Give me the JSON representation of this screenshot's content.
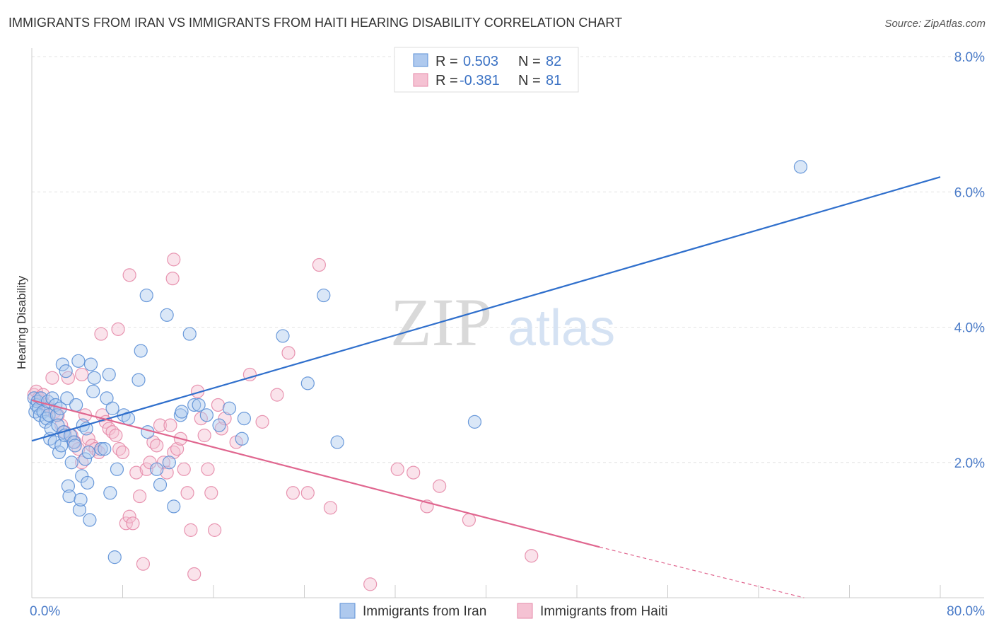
{
  "chart_data": {
    "type": "scatter",
    "title": "IMMIGRANTS FROM IRAN VS IMMIGRANTS FROM HAITI HEARING DISABILITY CORRELATION CHART",
    "source": "Source: ZipAtlas.com",
    "ylabel": "Hearing Disability",
    "xlim": [
      0,
      80
    ],
    "ylim": [
      0,
      8.0
    ],
    "x_tick_labels": {
      "min": "0.0%",
      "max": "80.0%"
    },
    "y_ticks": [
      {
        "value": 2,
        "label": "2.0%"
      },
      {
        "value": 4,
        "label": "4.0%"
      },
      {
        "value": 6,
        "label": "6.0%"
      },
      {
        "value": 8,
        "label": "8.0%"
      }
    ],
    "grid": true,
    "legend_position": "top-center",
    "legend": [
      {
        "r_label": "R =",
        "r_value": "0.503",
        "n_label": "N =",
        "n_value": "82"
      },
      {
        "r_label": "R =",
        "r_value": "-0.381",
        "n_label": "N =",
        "n_value": "81"
      }
    ],
    "series": [
      {
        "name": "Immigrants from Iran",
        "color": "#5b8fd6",
        "fill": "#aec9ee",
        "trend_color": "#2f6fcc",
        "trend": {
          "x0": 0,
          "y0": 2.32,
          "x1": 80,
          "y1": 6.22
        },
        "points": [
          [
            0.2,
            2.95
          ],
          [
            0.3,
            2.75
          ],
          [
            0.4,
            2.85
          ],
          [
            0.5,
            2.9
          ],
          [
            0.6,
            2.8
          ],
          [
            0.7,
            2.7
          ],
          [
            0.8,
            2.95
          ],
          [
            1.0,
            2.75
          ],
          [
            1.2,
            2.6
          ],
          [
            1.3,
            2.65
          ],
          [
            1.4,
            2.9
          ],
          [
            1.5,
            2.7
          ],
          [
            1.6,
            2.35
          ],
          [
            1.7,
            2.5
          ],
          [
            1.8,
            2.95
          ],
          [
            2.0,
            2.3
          ],
          [
            2.1,
            2.85
          ],
          [
            2.2,
            2.7
          ],
          [
            2.3,
            2.55
          ],
          [
            2.4,
            2.15
          ],
          [
            2.5,
            2.8
          ],
          [
            2.6,
            2.25
          ],
          [
            2.7,
            3.45
          ],
          [
            2.8,
            2.45
          ],
          [
            2.9,
            2.4
          ],
          [
            3.0,
            3.35
          ],
          [
            3.1,
            2.95
          ],
          [
            3.2,
            1.65
          ],
          [
            3.3,
            1.5
          ],
          [
            3.4,
            2.4
          ],
          [
            3.5,
            2.0
          ],
          [
            3.7,
            2.3
          ],
          [
            3.8,
            2.25
          ],
          [
            3.9,
            2.85
          ],
          [
            4.1,
            3.5
          ],
          [
            4.2,
            1.3
          ],
          [
            4.3,
            1.45
          ],
          [
            4.4,
            1.8
          ],
          [
            4.5,
            2.55
          ],
          [
            4.7,
            2.05
          ],
          [
            4.8,
            2.5
          ],
          [
            4.9,
            1.7
          ],
          [
            5.0,
            2.15
          ],
          [
            5.1,
            1.15
          ],
          [
            5.2,
            3.45
          ],
          [
            5.4,
            3.05
          ],
          [
            5.5,
            3.25
          ],
          [
            6.1,
            2.2
          ],
          [
            6.4,
            2.2
          ],
          [
            6.6,
            2.95
          ],
          [
            6.8,
            3.3
          ],
          [
            6.9,
            1.55
          ],
          [
            7.1,
            2.8
          ],
          [
            7.3,
            0.6
          ],
          [
            7.5,
            1.9
          ],
          [
            8.1,
            2.7
          ],
          [
            8.5,
            2.65
          ],
          [
            9.4,
            3.22
          ],
          [
            9.6,
            3.65
          ],
          [
            10.1,
            4.47
          ],
          [
            10.2,
            2.45
          ],
          [
            11.0,
            1.9
          ],
          [
            11.3,
            1.67
          ],
          [
            11.9,
            4.18
          ],
          [
            12.1,
            2.0
          ],
          [
            12.5,
            1.35
          ],
          [
            13.1,
            2.7
          ],
          [
            13.2,
            2.75
          ],
          [
            13.9,
            3.9
          ],
          [
            14.3,
            2.85
          ],
          [
            14.7,
            2.85
          ],
          [
            15.4,
            2.7
          ],
          [
            16.5,
            2.55
          ],
          [
            17.4,
            2.8
          ],
          [
            18.5,
            2.35
          ],
          [
            18.7,
            2.65
          ],
          [
            22.1,
            3.87
          ],
          [
            24.3,
            3.17
          ],
          [
            25.7,
            4.47
          ],
          [
            26.9,
            2.3
          ],
          [
            39.0,
            2.6
          ],
          [
            67.7,
            6.37
          ]
        ]
      },
      {
        "name": "Immigrants from Haiti",
        "color": "#e68aa8",
        "fill": "#f5c2d3",
        "trend_color": "#e0668f",
        "trend": {
          "x0": 0,
          "y0": 2.92,
          "x1": 50,
          "y1": 0.75
        },
        "trend_dash": {
          "x0": 50,
          "y0": 0.75,
          "x1": 68,
          "y1": 0.0
        },
        "points": [
          [
            0.2,
            3.0
          ],
          [
            0.4,
            3.05
          ],
          [
            0.6,
            2.95
          ],
          [
            0.8,
            2.9
          ],
          [
            1.0,
            3.0
          ],
          [
            1.2,
            2.85
          ],
          [
            1.5,
            2.8
          ],
          [
            1.8,
            3.25
          ],
          [
            2.0,
            2.75
          ],
          [
            2.3,
            2.7
          ],
          [
            2.6,
            2.55
          ],
          [
            2.9,
            2.45
          ],
          [
            3.2,
            3.25
          ],
          [
            3.5,
            2.4
          ],
          [
            3.8,
            2.3
          ],
          [
            4.1,
            2.2
          ],
          [
            4.4,
            2.0
          ],
          [
            4.7,
            2.7
          ],
          [
            5.0,
            2.35
          ],
          [
            5.3,
            2.25
          ],
          [
            5.6,
            2.2
          ],
          [
            5.9,
            2.15
          ],
          [
            6.2,
            2.7
          ],
          [
            6.5,
            2.6
          ],
          [
            6.8,
            2.5
          ],
          [
            7.1,
            2.45
          ],
          [
            7.4,
            2.4
          ],
          [
            7.7,
            2.2
          ],
          [
            8.0,
            2.15
          ],
          [
            8.3,
            1.1
          ],
          [
            8.6,
            1.2
          ],
          [
            8.9,
            1.1
          ],
          [
            9.2,
            1.85
          ],
          [
            9.5,
            1.5
          ],
          [
            9.8,
            0.5
          ],
          [
            10.1,
            1.9
          ],
          [
            10.4,
            2.0
          ],
          [
            10.7,
            2.3
          ],
          [
            11.0,
            2.25
          ],
          [
            11.3,
            2.55
          ],
          [
            11.6,
            2.0
          ],
          [
            11.9,
            1.85
          ],
          [
            12.2,
            2.55
          ],
          [
            12.5,
            2.15
          ],
          [
            12.8,
            2.2
          ],
          [
            13.1,
            2.35
          ],
          [
            13.4,
            1.9
          ],
          [
            13.7,
            1.55
          ],
          [
            14.0,
            1.0
          ],
          [
            14.3,
            0.35
          ],
          [
            14.6,
            3.05
          ],
          [
            14.9,
            2.65
          ],
          [
            15.2,
            2.4
          ],
          [
            15.5,
            1.9
          ],
          [
            15.8,
            1.55
          ],
          [
            16.1,
            1.0
          ],
          [
            16.4,
            2.85
          ],
          [
            16.7,
            2.5
          ],
          [
            17.0,
            2.65
          ],
          [
            18.0,
            2.3
          ],
          [
            19.2,
            3.3
          ],
          [
            20.3,
            2.6
          ],
          [
            21.6,
            3.0
          ],
          [
            22.6,
            3.62
          ],
          [
            23.0,
            1.55
          ],
          [
            24.3,
            1.55
          ],
          [
            25.3,
            4.92
          ],
          [
            26.3,
            1.33
          ],
          [
            29.8,
            0.2
          ],
          [
            32.2,
            1.9
          ],
          [
            33.6,
            1.85
          ],
          [
            34.8,
            1.35
          ],
          [
            35.9,
            1.65
          ],
          [
            38.5,
            1.15
          ],
          [
            44.0,
            0.62
          ],
          [
            6.1,
            3.9
          ],
          [
            7.6,
            3.97
          ],
          [
            8.6,
            4.77
          ],
          [
            12.4,
            4.72
          ],
          [
            12.5,
            5.0
          ],
          [
            4.4,
            3.3
          ]
        ]
      }
    ]
  },
  "bottom_legend": [
    {
      "label": "Immigrants from Iran"
    },
    {
      "label": "Immigrants from Haiti"
    }
  ],
  "watermark": {
    "zip": "ZIP",
    "atlas": "atlas"
  }
}
